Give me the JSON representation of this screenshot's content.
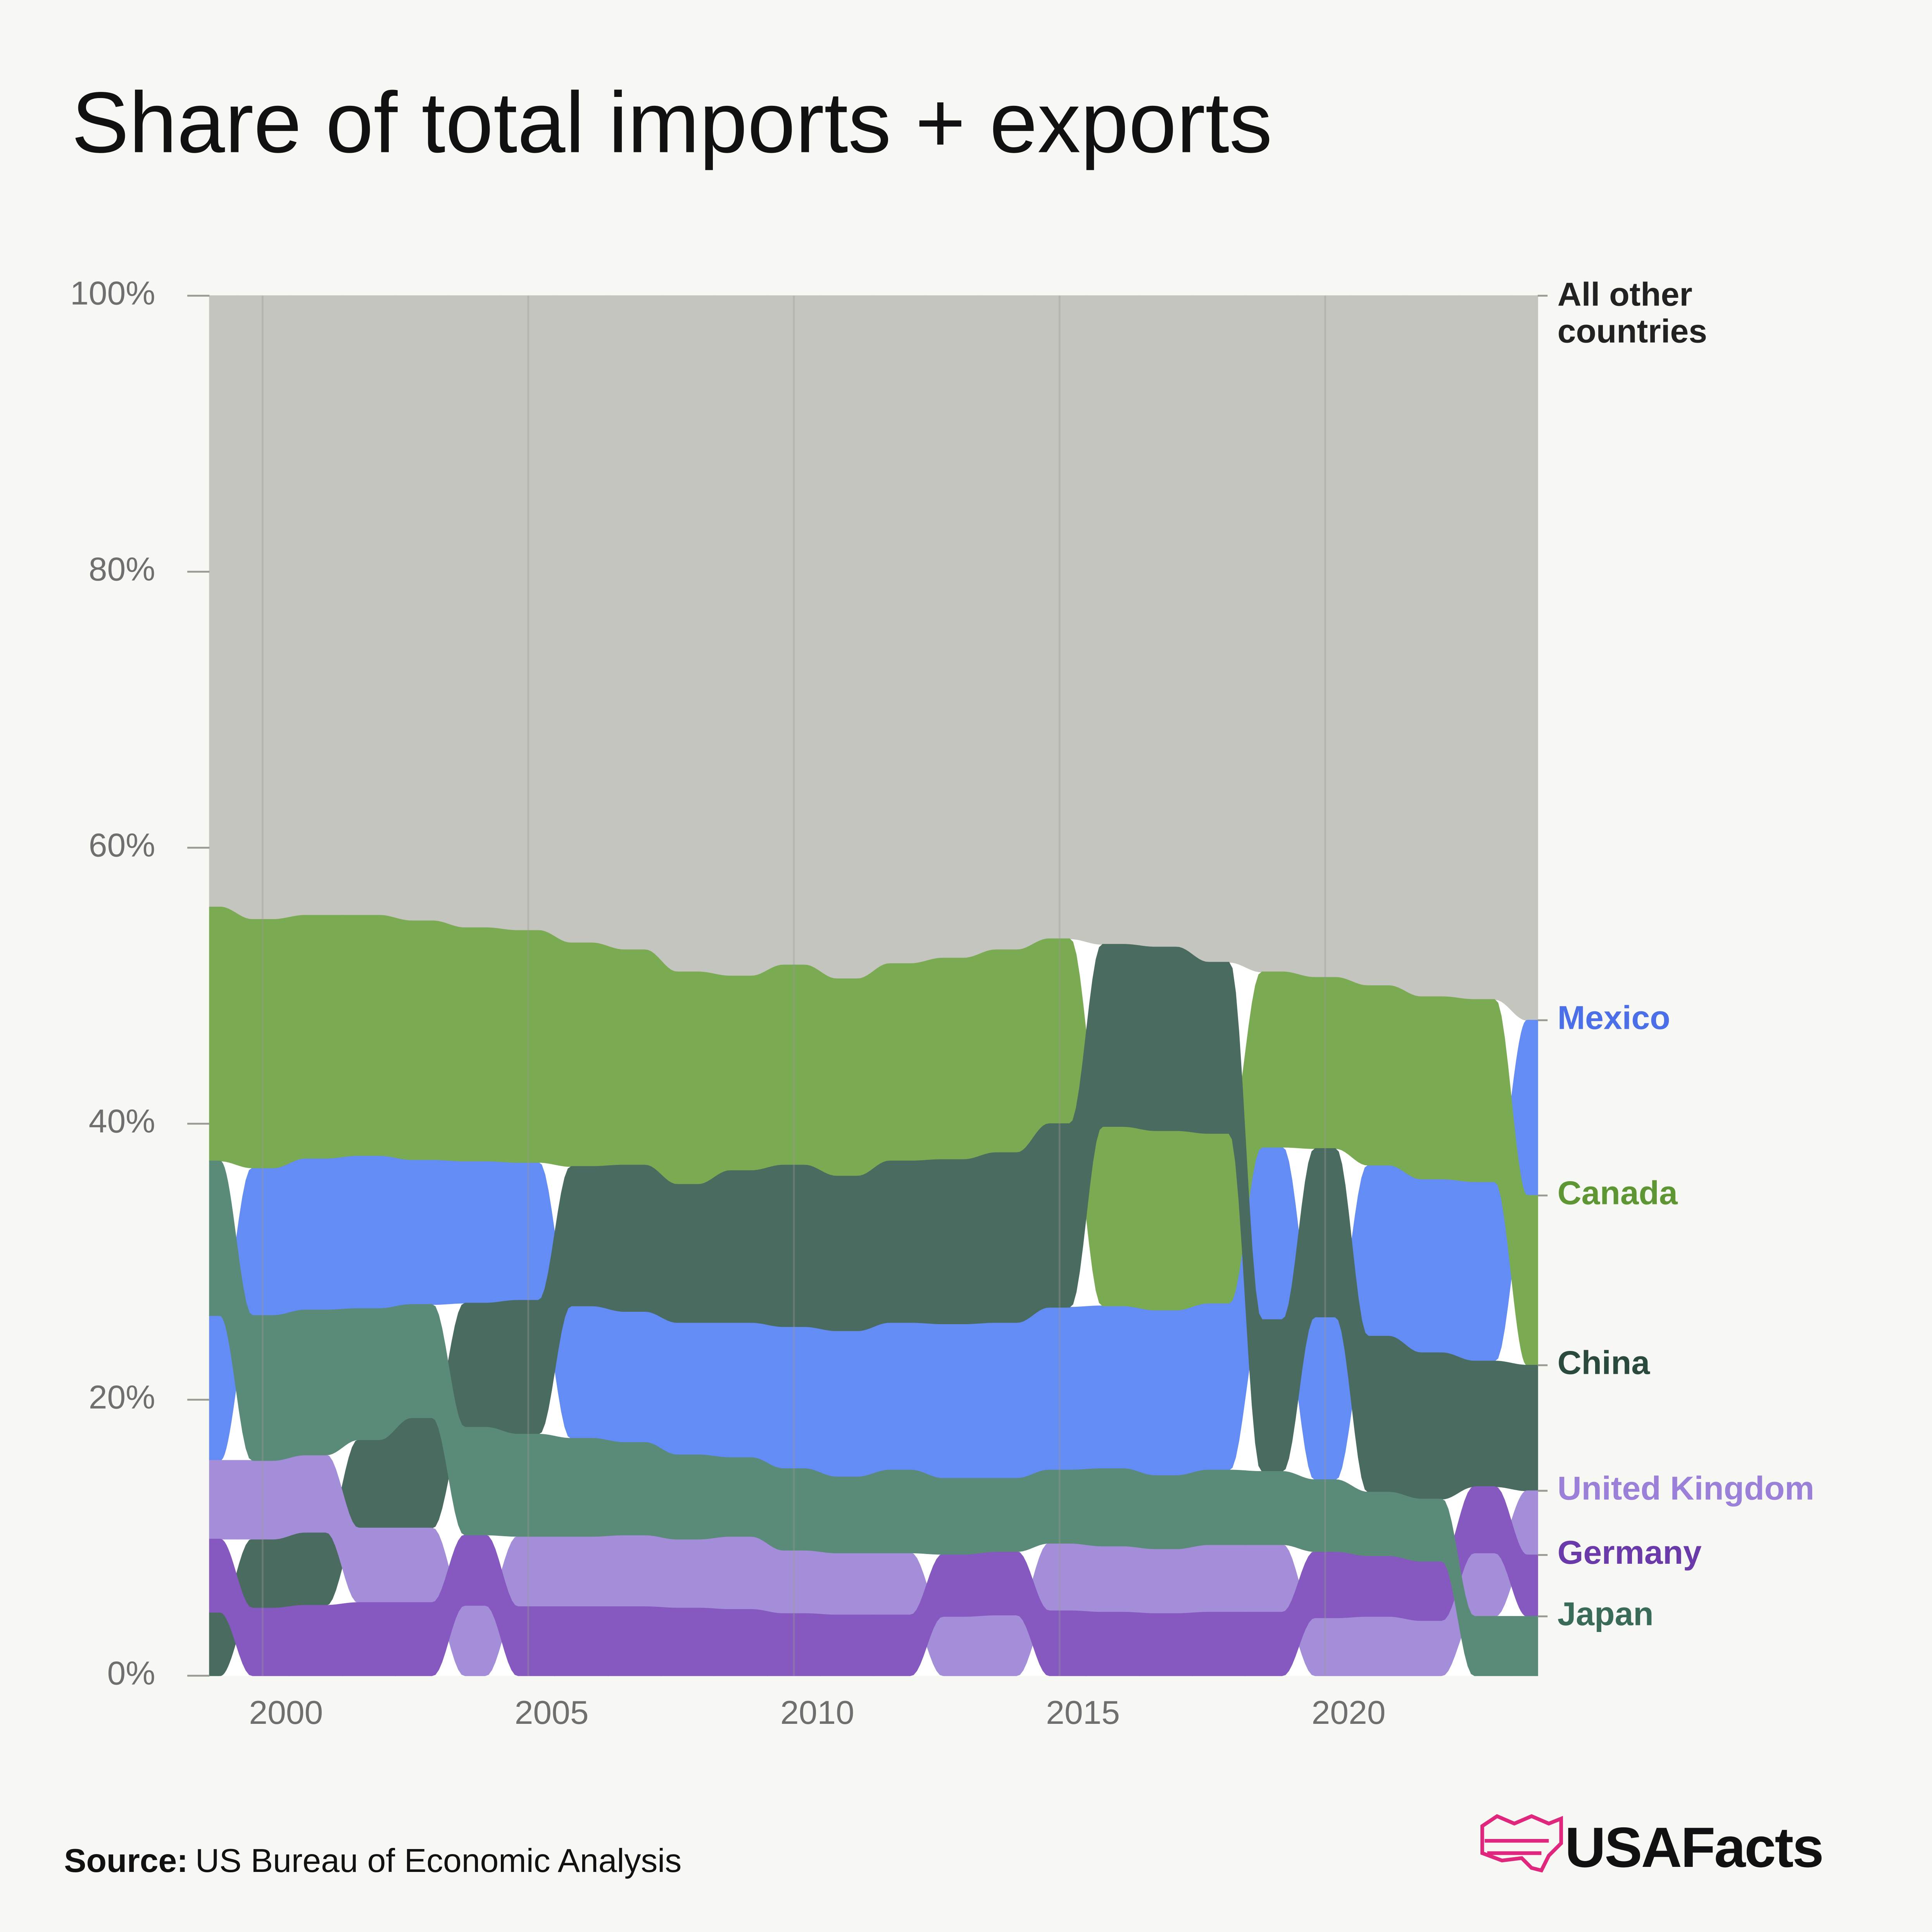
{
  "chart_data": {
    "type": "ranked_area",
    "title": "Share of total imports + exports",
    "x": [
      1999,
      2000,
      2001,
      2002,
      2003,
      2004,
      2005,
      2006,
      2007,
      2008,
      2009,
      2010,
      2011,
      2012,
      2013,
      2014,
      2015,
      2016,
      2017,
      2018,
      2019,
      2020,
      2021,
      2022,
      2023,
      2024
    ],
    "xlim": [
      1999,
      2024
    ],
    "xticks": [
      2000,
      2005,
      2010,
      2015,
      2020
    ],
    "ylim": [
      0,
      100
    ],
    "yticks": [
      {
        "value": 0,
        "label": "0%"
      },
      {
        "value": 20,
        "label": "20%"
      },
      {
        "value": 40,
        "label": "40%"
      },
      {
        "value": 60,
        "label": "60%"
      },
      {
        "value": 80,
        "label": "80%"
      },
      {
        "value": 100,
        "label": "100%"
      }
    ],
    "grid": true,
    "series": [
      {
        "name": "All other countries",
        "color": "#c4c5bf",
        "label_color": "#222222",
        "values": [
          44.3,
          45.2,
          44.9,
          44.9,
          45.3,
          45.8,
          46.0,
          46.9,
          47.4,
          49.0,
          49.3,
          48.5,
          49.5,
          48.4,
          48.0,
          47.4,
          46.6,
          47.0,
          47.2,
          48.3,
          49.0,
          49.4,
          50.0,
          50.8,
          51.0,
          52.5
        ]
      },
      {
        "name": "Mexico",
        "color": "#648cf5",
        "label_color": "#4b6fe8",
        "values": [
          10.5,
          10.7,
          11.0,
          11.1,
          10.5,
          10.3,
          10.0,
          9.6,
          9.5,
          9.6,
          9.8,
          10.3,
          10.6,
          10.7,
          11.2,
          11.3,
          11.8,
          11.8,
          12.0,
          12.1,
          12.5,
          11.8,
          12.4,
          12.6,
          13.0,
          12.7
        ]
      },
      {
        "name": "Canada",
        "color": "#7aaa52",
        "label_color": "#5f9634",
        "values": [
          18.4,
          18.0,
          17.6,
          17.4,
          17.3,
          16.9,
          16.8,
          16.2,
          15.6,
          15.4,
          14.1,
          14.5,
          14.3,
          14.3,
          14.6,
          14.7,
          13.4,
          13.0,
          13.0,
          12.3,
          12.7,
          12.4,
          13.0,
          13.2,
          13.2,
          12.3
        ]
      },
      {
        "name": "China",
        "color": "#4a6b5f",
        "label_color": "#2a4a3c",
        "values": [
          4.6,
          5.0,
          5.3,
          6.4,
          8.0,
          9.0,
          9.7,
          10.1,
          10.6,
          10.0,
          11.0,
          11.7,
          11.2,
          11.7,
          11.9,
          12.3,
          13.3,
          13.2,
          13.3,
          12.4,
          11.0,
          12.2,
          11.3,
          10.6,
          9.1,
          9.1
        ]
      },
      {
        "name": "United Kingdom",
        "color": "#a48ed9",
        "label_color": "#9a80d8",
        "values": [
          5.7,
          5.7,
          5.6,
          5.4,
          5.4,
          5.1,
          5.1,
          5.1,
          5.2,
          5.0,
          5.3,
          4.6,
          4.5,
          4.5,
          4.3,
          4.4,
          4.9,
          4.8,
          4.7,
          4.9,
          4.9,
          4.2,
          4.3,
          4.0,
          4.6,
          4.65
        ]
      },
      {
        "name": "Germany",
        "color": "#8659c0",
        "label_color": "#6a3aaa",
        "values": [
          5.3,
          4.9,
          5.1,
          5.3,
          5.3,
          5.1,
          5.0,
          5.0,
          5.0,
          4.9,
          4.8,
          4.5,
          4.4,
          4.4,
          4.5,
          4.6,
          4.7,
          4.6,
          4.5,
          4.6,
          4.6,
          4.8,
          4.4,
          4.3,
          4.8,
          4.45
        ]
      },
      {
        "name": "Japan",
        "color": "#5a8a78",
        "label_color": "#3a6b58",
        "values": [
          11.2,
          10.5,
          10.5,
          9.5,
          8.2,
          7.8,
          7.4,
          7.1,
          6.7,
          6.1,
          5.7,
          5.9,
          5.5,
          6.0,
          5.5,
          5.3,
          5.3,
          5.6,
          5.3,
          5.4,
          5.3,
          5.2,
          4.6,
          4.5,
          4.3,
          4.3
        ]
      }
    ],
    "source_label": "Source:",
    "source": "US Bureau of Economic Analysis",
    "brand": "USAFacts"
  }
}
